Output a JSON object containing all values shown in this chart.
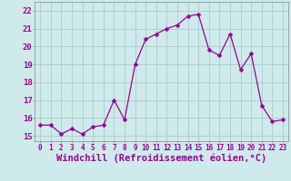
{
  "x": [
    0,
    1,
    2,
    3,
    4,
    5,
    6,
    7,
    8,
    9,
    10,
    11,
    12,
    13,
    14,
    15,
    16,
    17,
    18,
    19,
    20,
    21,
    22,
    23
  ],
  "y": [
    15.6,
    15.6,
    15.1,
    15.4,
    15.1,
    15.5,
    15.6,
    17.0,
    15.9,
    19.0,
    20.4,
    20.7,
    21.0,
    21.2,
    21.7,
    21.8,
    19.8,
    19.5,
    20.7,
    18.7,
    19.6,
    16.7,
    15.8,
    15.9
  ],
  "line_color": "#990099",
  "marker": "D",
  "marker_size": 2.5,
  "bg_color": "#ceeaea",
  "grid_color": "#aacccc",
  "xlabel": "Windchill (Refroidissement éolien,°C)",
  "xlabel_color": "#990099",
  "xlabel_fontsize": 7.5,
  "ylim": [
    14.7,
    22.5
  ],
  "xlim": [
    -0.5,
    23.5
  ],
  "xtick_fontsize": 5.5,
  "ytick_fontsize": 6.5,
  "tick_color": "#990099",
  "spine_color": "#888888",
  "ytick_vals": [
    15,
    16,
    17,
    18,
    19,
    20,
    21,
    22
  ]
}
